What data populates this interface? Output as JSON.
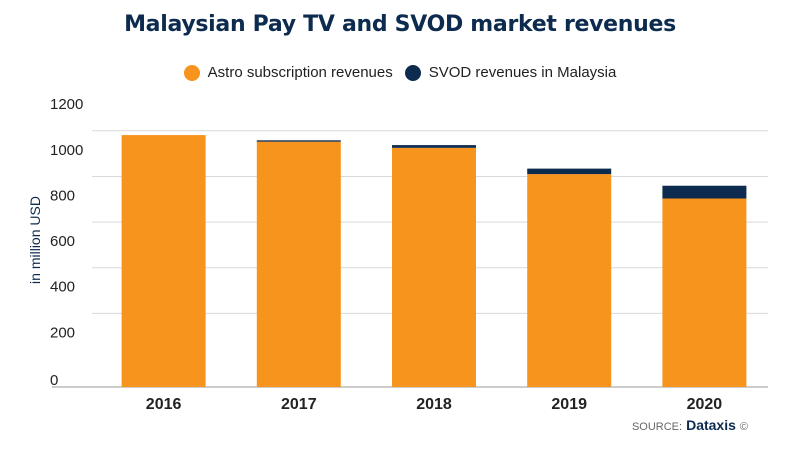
{
  "colors": {
    "astro": "#f7941d",
    "svod": "#0d2b4e",
    "grid": "#d9d9d9",
    "axis": "#999999"
  },
  "source": {
    "prefix": "SOURCE:",
    "brand": "Dataxis",
    "mark": "©"
  },
  "chart_data": {
    "type": "bar",
    "stacked": true,
    "title": "Malaysian Pay TV and SVOD market revenues",
    "ylabel": "in million USD",
    "xlabel": "",
    "categories": [
      "2016",
      "2017",
      "2018",
      "2019",
      "2020"
    ],
    "series": [
      {
        "name": "Astro subscription revenues",
        "values": [
          1104,
          1075,
          1048,
          933,
          826
        ]
      },
      {
        "name": "SVOD revenues in Malaysia",
        "values": [
          0,
          6,
          12,
          24,
          56
        ]
      }
    ],
    "ylim": [
      0,
      1200
    ],
    "yticks": [
      "0",
      "200",
      "400",
      "600",
      "800",
      "1000",
      "1200"
    ],
    "grid": true,
    "legend_position": "top"
  }
}
